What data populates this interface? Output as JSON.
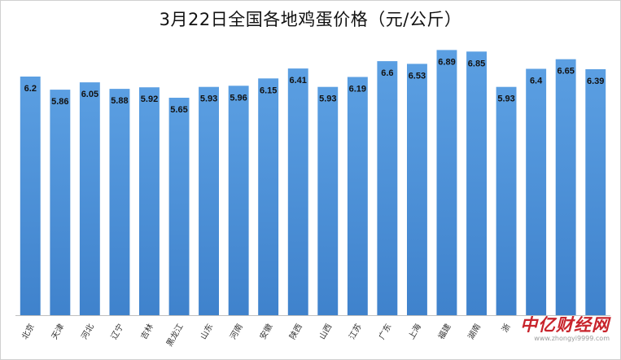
{
  "chart_data": {
    "type": "bar",
    "title": "3月22日全国各地鸡蛋价格（元/公斤）",
    "categories": [
      "北京",
      "天津",
      "河北",
      "辽宁",
      "吉林",
      "黑龙江",
      "山东",
      "河南",
      "安徽",
      "陕西",
      "山西",
      "江苏",
      "广东",
      "上海",
      "福建",
      "湖南",
      "浙",
      "",
      "",
      ""
    ],
    "values": [
      6.2,
      5.86,
      6.05,
      5.88,
      5.92,
      5.65,
      5.93,
      5.96,
      6.15,
      6.41,
      5.93,
      6.19,
      6.6,
      6.53,
      6.89,
      6.85,
      5.93,
      6.4,
      6.65,
      6.39
    ],
    "data_labels": [
      "6.2",
      "5.86",
      "6.05",
      "5.88",
      "5.92",
      "5.65",
      "5.93",
      "5.96",
      "6.15",
      "6.41",
      "5.93",
      "6.19",
      "6.6",
      "6.53",
      "6.89",
      "6.85",
      "5.93",
      "6.4",
      "6.65",
      "6.39"
    ],
    "xlabel": "",
    "ylabel": "",
    "ylim": [
      0,
      7.3
    ],
    "grid": false,
    "legend": "none",
    "bar_color": "#4a90d9"
  },
  "watermark": {
    "logo_text": "中亿财经网",
    "url": "www.zhongyi9999.com"
  }
}
